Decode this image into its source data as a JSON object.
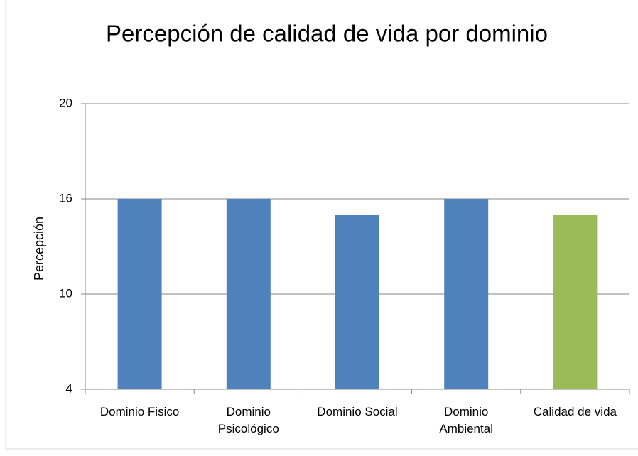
{
  "chart_data": {
    "type": "bar",
    "title": "Percepción de calidad de vida por dominio",
    "y_label": "Percepción",
    "categories": [
      "Dominio Fisico",
      "Dominio Psicológico",
      "Dominio Social",
      "Dominio Ambiental",
      "Calidad de vida"
    ],
    "values": [
      16,
      16,
      15,
      16,
      15
    ],
    "colors": [
      "#4f81bd",
      "#4f81bd",
      "#4f81bd",
      "#4f81bd",
      "#9bbb59"
    ],
    "ylim": [
      4,
      20
    ],
    "yticks": [
      4,
      10,
      16,
      20
    ],
    "grid": true
  }
}
